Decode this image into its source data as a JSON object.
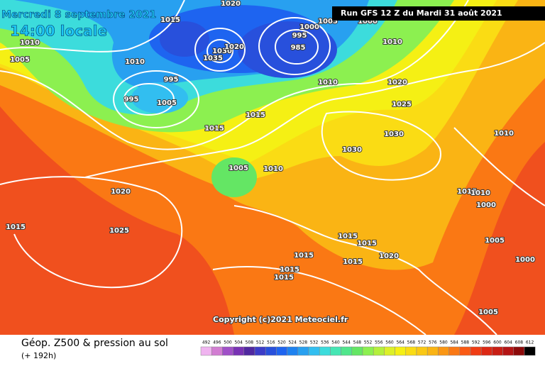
{
  "header": {
    "date": "Mercredi 8 septembre 2021",
    "time": "14:00 locale",
    "run": "Run GFS 12 Z du Mardi 31 août 2021"
  },
  "isobar_labels": [
    "1015",
    "1020",
    "1010",
    "1005",
    "1010",
    "995",
    "995",
    "1005",
    "1035",
    "1030",
    "1020",
    "1000",
    "995",
    "985",
    "1005",
    "1000",
    "1010",
    "1010",
    "1020",
    "1025",
    "1015",
    "1015",
    "1030",
    "1030",
    "1010",
    "1005",
    "1010",
    "1020",
    "1015",
    "1010",
    "1000",
    "1015",
    "1025",
    "1015",
    "1015",
    "1020",
    "1005",
    "1000",
    "1015",
    "1015",
    "1015",
    "1015",
    "1005"
  ],
  "copyright": "Copyright (c)2021 Meteociel.fr",
  "legend": {
    "title": "Géop. Z500 & pression au sol",
    "lead_time": "(+ 192h)",
    "values": [
      492,
      496,
      500,
      504,
      508,
      512,
      516,
      520,
      524,
      528,
      532,
      536,
      540,
      544,
      548,
      552,
      556,
      560,
      564,
      568,
      572,
      576,
      580,
      584,
      588,
      592,
      596,
      600,
      604,
      608,
      612
    ],
    "colors": [
      "#f0b4f0",
      "#d27dd2",
      "#a050c8",
      "#7832b4",
      "#5028a0",
      "#3c3cc8",
      "#2850dc",
      "#1e64f0",
      "#1e82f0",
      "#28a0f0",
      "#32bef0",
      "#3cdcdc",
      "#46e6b4",
      "#50e68c",
      "#64e664",
      "#8cf050",
      "#b4f03c",
      "#dcf028",
      "#f5f014",
      "#fadc14",
      "#fac814",
      "#fab414",
      "#fa9614",
      "#fa7814",
      "#fa5a14",
      "#f03c14",
      "#dc2814",
      "#c81e14",
      "#b41414",
      "#8c0a0a",
      "#000000"
    ]
  }
}
